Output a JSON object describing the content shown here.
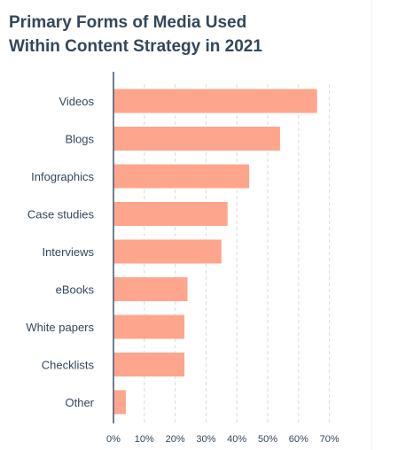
{
  "page": {
    "title": "Primary Forms of Media Used Within Content Strategy in 2021"
  },
  "colors": {
    "bar": "#fea58e",
    "axis": "#4a5f73",
    "grid": "#d6dde3",
    "text": "#33475b"
  },
  "chart_data": {
    "type": "bar",
    "orientation": "horizontal",
    "title": "Primary Forms of Media Used Within Content Strategy in 2021",
    "categories": [
      "Videos",
      "Blogs",
      "Infographics",
      "Case studies",
      "Interviews",
      "eBooks",
      "White papers",
      "Checklists",
      "Other"
    ],
    "values": [
      66,
      54,
      44,
      37,
      35,
      24,
      23,
      23,
      4
    ],
    "xlim": [
      0,
      70
    ],
    "x_ticks": [
      0,
      10,
      20,
      30,
      40,
      50,
      60,
      70
    ],
    "x_tick_labels": [
      "0%",
      "10%",
      "20%",
      "30%",
      "40%",
      "50%",
      "60%",
      "70%"
    ],
    "grid": true,
    "legend": false
  }
}
